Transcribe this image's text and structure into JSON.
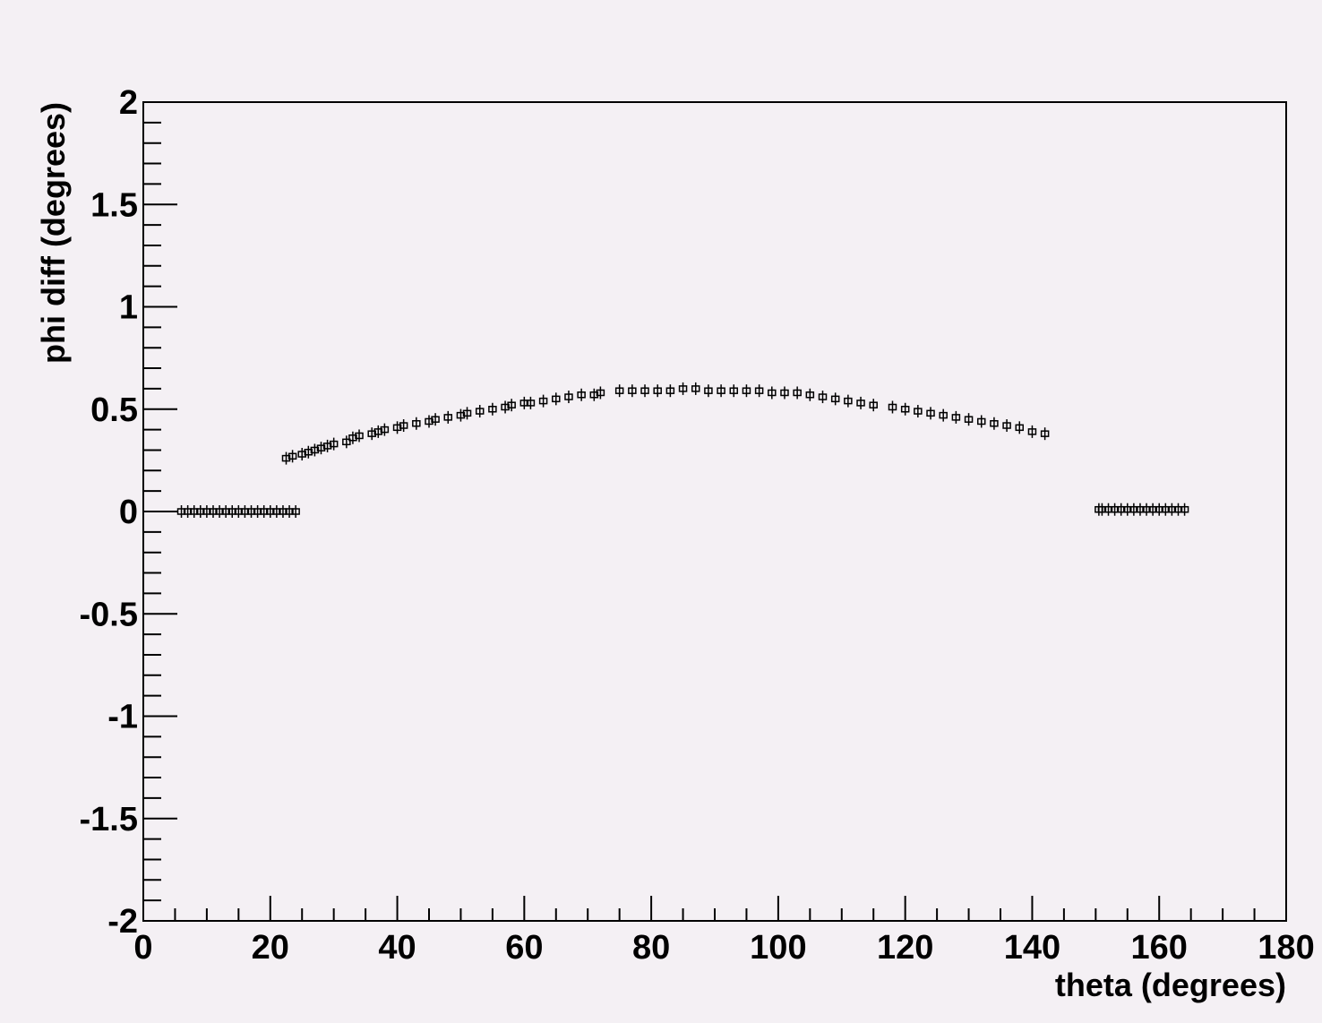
{
  "chart_data": {
    "type": "scatter",
    "title": "",
    "xlabel": "theta (degrees)",
    "ylabel": "phi diff (degrees)",
    "xlim": [
      0,
      180
    ],
    "ylim": [
      -2,
      2
    ],
    "x_ticks": [
      "0",
      "20",
      "40",
      "60",
      "80",
      "100",
      "120",
      "140",
      "160",
      "180"
    ],
    "y_ticks": [
      "-2",
      "-1.5",
      "-1",
      "-0.5",
      "0",
      "0.5",
      "1",
      "1.5",
      "2"
    ],
    "grid": false,
    "legend": "none",
    "marker_color": "#000000",
    "background_color": "#f4f0f4",
    "series": [
      {
        "points": [
          [
            6,
            0.0
          ],
          [
            7,
            0.0
          ],
          [
            8,
            0.0
          ],
          [
            9,
            0.0
          ],
          [
            10,
            0.0
          ],
          [
            11,
            0.0
          ],
          [
            12,
            0.0
          ],
          [
            13,
            0.0
          ],
          [
            14,
            0.0
          ],
          [
            15,
            0.0
          ],
          [
            16,
            0.0
          ],
          [
            17,
            0.0
          ],
          [
            18,
            0.0
          ],
          [
            19,
            0.0
          ],
          [
            20,
            0.0
          ],
          [
            21,
            0.0
          ],
          [
            22,
            0.0
          ],
          [
            23,
            0.0
          ],
          [
            24,
            0.0
          ],
          [
            22.5,
            0.26
          ],
          [
            23.5,
            0.27
          ],
          [
            25,
            0.28
          ],
          [
            26,
            0.29
          ],
          [
            27,
            0.3
          ],
          [
            28,
            0.31
          ],
          [
            29,
            0.32
          ],
          [
            30,
            0.33
          ],
          [
            32,
            0.34
          ],
          [
            33,
            0.36
          ],
          [
            34,
            0.37
          ],
          [
            36,
            0.38
          ],
          [
            37,
            0.39
          ],
          [
            38,
            0.4
          ],
          [
            40,
            0.41
          ],
          [
            41,
            0.42
          ],
          [
            43,
            0.43
          ],
          [
            45,
            0.44
          ],
          [
            46,
            0.45
          ],
          [
            48,
            0.46
          ],
          [
            50,
            0.47
          ],
          [
            51,
            0.48
          ],
          [
            53,
            0.49
          ],
          [
            55,
            0.5
          ],
          [
            57,
            0.51
          ],
          [
            58,
            0.52
          ],
          [
            60,
            0.53
          ],
          [
            61,
            0.53
          ],
          [
            63,
            0.54
          ],
          [
            65,
            0.55
          ],
          [
            67,
            0.56
          ],
          [
            69,
            0.57
          ],
          [
            71,
            0.57
          ],
          [
            72,
            0.58
          ],
          [
            75,
            0.59
          ],
          [
            77,
            0.59
          ],
          [
            79,
            0.59
          ],
          [
            81,
            0.59
          ],
          [
            83,
            0.59
          ],
          [
            85,
            0.6
          ],
          [
            87,
            0.6
          ],
          [
            89,
            0.59
          ],
          [
            91,
            0.59
          ],
          [
            93,
            0.59
          ],
          [
            95,
            0.59
          ],
          [
            97,
            0.59
          ],
          [
            99,
            0.58
          ],
          [
            101,
            0.58
          ],
          [
            103,
            0.58
          ],
          [
            105,
            0.57
          ],
          [
            107,
            0.56
          ],
          [
            109,
            0.55
          ],
          [
            111,
            0.54
          ],
          [
            113,
            0.53
          ],
          [
            115,
            0.52
          ],
          [
            118,
            0.51
          ],
          [
            120,
            0.5
          ],
          [
            122,
            0.49
          ],
          [
            124,
            0.48
          ],
          [
            126,
            0.47
          ],
          [
            128,
            0.46
          ],
          [
            130,
            0.45
          ],
          [
            132,
            0.44
          ],
          [
            134,
            0.43
          ],
          [
            136,
            0.42
          ],
          [
            138,
            0.41
          ],
          [
            140,
            0.39
          ],
          [
            142,
            0.38
          ],
          [
            150.5,
            0.01
          ],
          [
            151,
            0.01
          ],
          [
            152,
            0.01
          ],
          [
            153,
            0.01
          ],
          [
            154,
            0.01
          ],
          [
            155,
            0.01
          ],
          [
            156,
            0.01
          ],
          [
            157,
            0.01
          ],
          [
            158,
            0.01
          ],
          [
            159,
            0.01
          ],
          [
            160,
            0.01
          ],
          [
            161,
            0.01
          ],
          [
            162,
            0.01
          ],
          [
            163,
            0.01
          ],
          [
            164,
            0.01
          ]
        ]
      }
    ]
  }
}
